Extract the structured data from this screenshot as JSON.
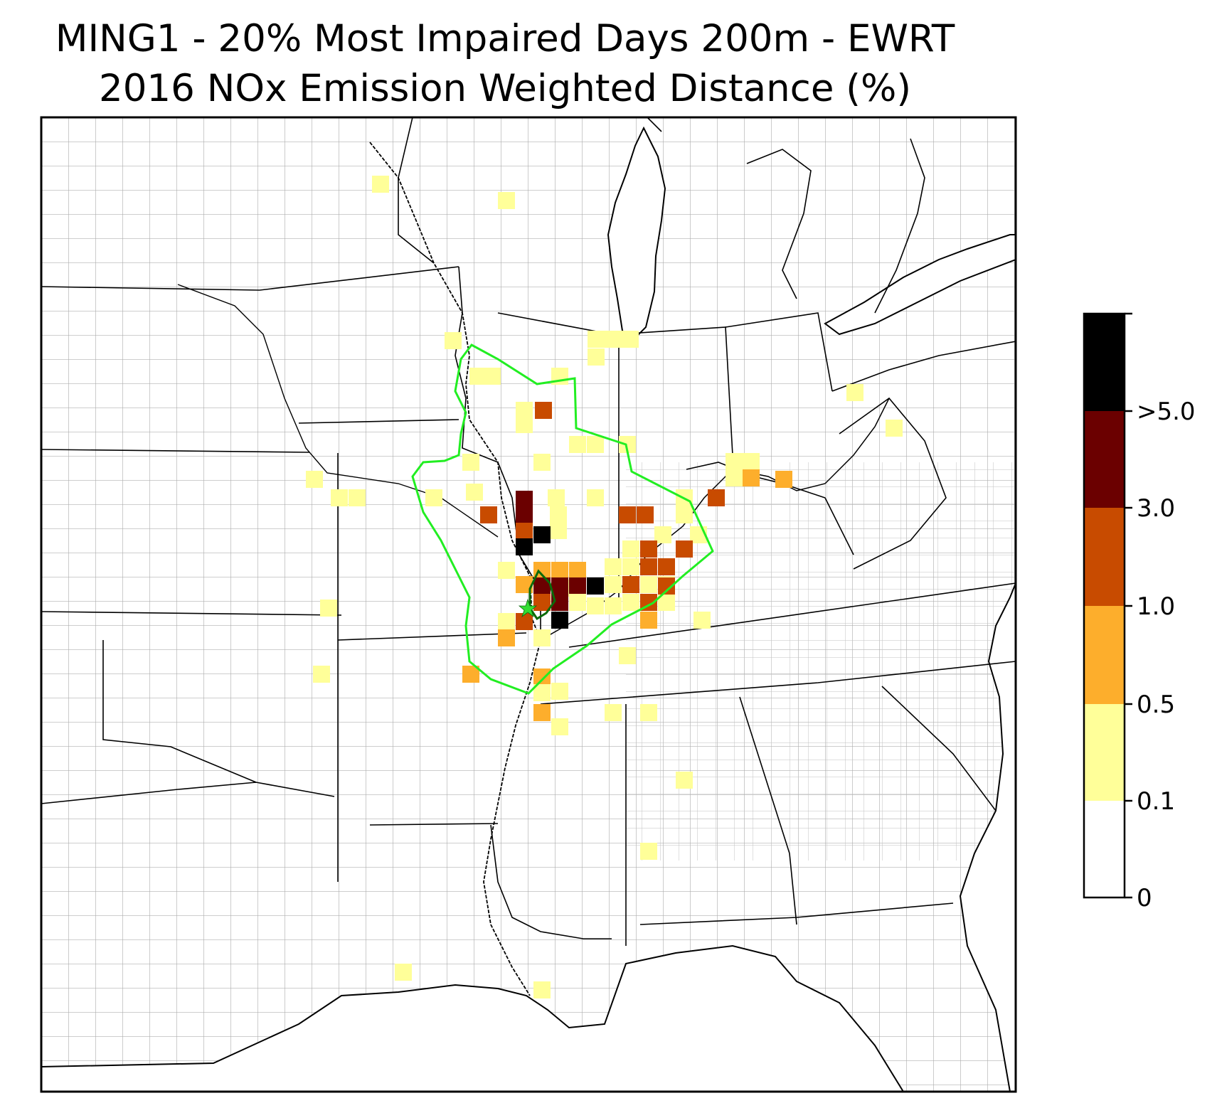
{
  "title": {
    "line1": "MING1 - 20% Most Impaired Days 200m - EWRT",
    "line2": "2016 NOx Emission Weighted Distance (%)"
  },
  "colorbar": {
    "ticks": [
      "0",
      "0.1",
      "0.5",
      "1.0",
      "3.0",
      ">5.0"
    ],
    "bins": [
      {
        "range": "0-0.1",
        "color": "#ffffff"
      },
      {
        "range": "0.1-0.5",
        "color": "#ffff99"
      },
      {
        "range": "0.5-1.0",
        "color": "#fdae2c"
      },
      {
        "range": "1.0-3.0",
        "color": "#c84b00"
      },
      {
        "range": "3.0-5.0",
        "color": "#6b0000"
      },
      {
        "range": ">5.0",
        "color": "#000000"
      }
    ]
  },
  "map": {
    "colors": {
      "trajectory_outline": "#22ee22",
      "inner_outline": "#0b6b0b",
      "site_marker": "#33dd33",
      "state_lines": "#000000",
      "county_lines": "#a8a8a8"
    },
    "site_marker_icon": "star-icon",
    "cell_levels": {
      "light_yellow": 1,
      "orange": 2,
      "dark_orange": 3,
      "dark_red": 4,
      "black": 5
    }
  }
}
